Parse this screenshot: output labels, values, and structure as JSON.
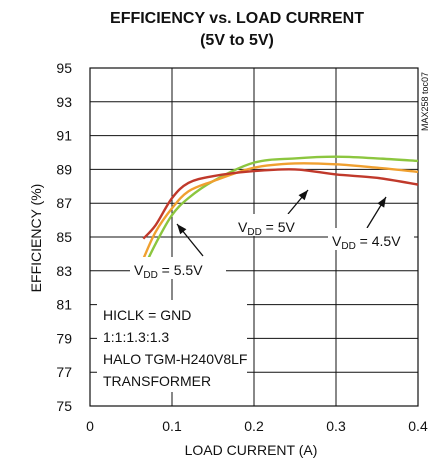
{
  "chart_data": {
    "type": "line",
    "title": "EFFICIENCY vs. LOAD CURRENT",
    "subtitle": "(5V to 5V)",
    "xlabel": "LOAD CURRENT (A)",
    "ylabel": "EFFICIENCY (%)",
    "xlim": [
      0,
      0.4
    ],
    "ylim": [
      75,
      95
    ],
    "xticks": [
      "0",
      "0.1",
      "0.2",
      "0.3",
      "0.4"
    ],
    "yticks": [
      "75",
      "77",
      "79",
      "81",
      "83",
      "85",
      "87",
      "89",
      "91",
      "93",
      "95"
    ],
    "grid": true,
    "side_label": "MAX258 toc07",
    "series": [
      {
        "name": "VDD = 4.5V",
        "color": "#c0392b",
        "x": [
          0.065,
          0.08,
          0.1,
          0.12,
          0.15,
          0.2,
          0.25,
          0.3,
          0.35,
          0.4
        ],
        "y": [
          84.9,
          85.7,
          87.3,
          88.2,
          88.6,
          88.9,
          89.0,
          88.7,
          88.5,
          88.1
        ]
      },
      {
        "name": "VDD = 5V",
        "color": "#f0a030",
        "x": [
          0.065,
          0.08,
          0.1,
          0.12,
          0.15,
          0.2,
          0.25,
          0.3,
          0.35,
          0.4
        ],
        "y": [
          83.7,
          85.3,
          86.7,
          87.7,
          88.3,
          89.1,
          89.35,
          89.3,
          89.1,
          88.85
        ]
      },
      {
        "name": "VDD = 5.5V",
        "color": "#8cc63f",
        "x": [
          0.065,
          0.08,
          0.1,
          0.12,
          0.15,
          0.2,
          0.25,
          0.3,
          0.35,
          0.4
        ],
        "y": [
          83.1,
          84.6,
          86.3,
          87.3,
          88.3,
          89.4,
          89.65,
          89.75,
          89.65,
          89.5
        ]
      }
    ],
    "annotations": {
      "vdd_5v": {
        "base": "V",
        "sub": "DD",
        "rest": " = 5V"
      },
      "vdd_45v": {
        "base": "V",
        "sub": "DD",
        "rest": " = 4.5V"
      },
      "vdd_55v": {
        "base": "V",
        "sub": "DD",
        "rest": " = 5.5V"
      },
      "conditions": [
        "HICLK = GND",
        "1:1:1.3:1.3",
        "HALO TGM-H240V8LF",
        "TRANSFORMER"
      ]
    }
  }
}
